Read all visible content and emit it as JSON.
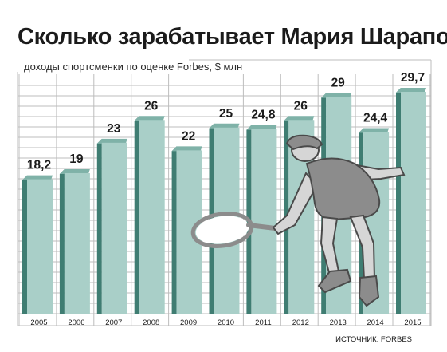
{
  "colors": {
    "bar_face": "#a9cfc8",
    "bar_side": "#3f7d72",
    "bar_top": "#7fb2a8",
    "grid": "#bdbdbd",
    "text": "#1b1b1b",
    "figure_gray": "#8c8c8c",
    "figure_dark": "#4a4a4a"
  },
  "illustration": "tennis-player-silhouette",
  "chart_data": {
    "type": "bar",
    "title": "Сколько зарабатывает Мария Шарапова",
    "subtitle": "доходы спортсменки по оценке Forbes, $ млн",
    "source": "ИСТОЧНИК: FORBES",
    "categories": [
      "2005",
      "2006",
      "2007",
      "2008",
      "2009",
      "2010",
      "2011",
      "2012",
      "2013",
      "2014",
      "2015"
    ],
    "values": [
      18.2,
      19,
      23,
      26,
      22,
      25,
      24.8,
      26,
      29,
      24.4,
      29.7
    ],
    "value_labels": [
      "18,2",
      "19",
      "23",
      "26",
      "22",
      "25",
      "24,8",
      "26",
      "29",
      "24,4",
      "29,7"
    ],
    "ylim": [
      0,
      30
    ],
    "grid": true,
    "legend": "none"
  }
}
